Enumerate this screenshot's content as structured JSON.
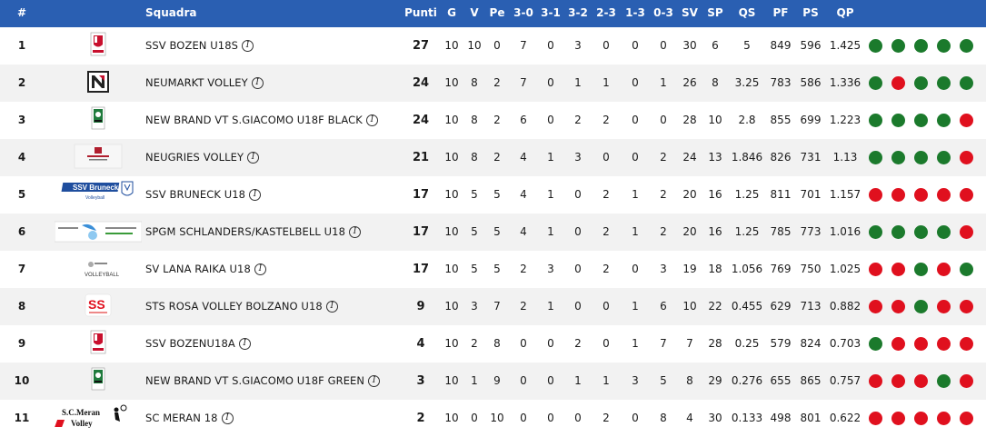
{
  "columns": [
    {
      "key": "rank",
      "label": "#"
    },
    {
      "key": "team",
      "label": "Squadra"
    },
    {
      "key": "pts",
      "label": "Punti"
    },
    {
      "key": "g",
      "label": "G"
    },
    {
      "key": "v",
      "label": "V"
    },
    {
      "key": "pe",
      "label": "Pe"
    },
    {
      "key": "r30",
      "label": "3-0"
    },
    {
      "key": "r31",
      "label": "3-1"
    },
    {
      "key": "r32",
      "label": "3-2"
    },
    {
      "key": "r23",
      "label": "2-3"
    },
    {
      "key": "r13",
      "label": "1-3"
    },
    {
      "key": "r03",
      "label": "0-3"
    },
    {
      "key": "sv",
      "label": "SV"
    },
    {
      "key": "sp",
      "label": "SP"
    },
    {
      "key": "qs",
      "label": "QS"
    },
    {
      "key": "pf",
      "label": "PF"
    },
    {
      "key": "ps",
      "label": "PS"
    },
    {
      "key": "qp",
      "label": "QP"
    }
  ],
  "colors": {
    "header_bg": "#2a5fb2",
    "win": "#1b7a2c",
    "loss": "#e0101e",
    "alt_row": "#f2f2f2"
  },
  "rows": [
    {
      "rank": "1",
      "team": "SSV BOZEN U18S",
      "logo": "bozen-logo",
      "pts": "27",
      "g": "10",
      "v": "10",
      "pe": "0",
      "r30": "7",
      "r31": "0",
      "r32": "3",
      "r23": "0",
      "r13": "0",
      "r03": "0",
      "sv": "30",
      "sp": "6",
      "qs": "5",
      "pf": "849",
      "ps": "596",
      "qp": "1.425",
      "form": [
        "W",
        "W",
        "W",
        "W",
        "W"
      ]
    },
    {
      "rank": "2",
      "team": "NEUMARKT VOLLEY",
      "logo": "neumarkt-logo",
      "pts": "24",
      "g": "10",
      "v": "8",
      "pe": "2",
      "r30": "7",
      "r31": "0",
      "r32": "1",
      "r23": "1",
      "r13": "0",
      "r03": "1",
      "sv": "26",
      "sp": "8",
      "qs": "3.25",
      "pf": "783",
      "ps": "586",
      "qp": "1.336",
      "form": [
        "W",
        "L",
        "W",
        "W",
        "W"
      ]
    },
    {
      "rank": "3",
      "team": "NEW BRAND VT S.GIACOMO U18F BLACK",
      "logo": "sgiacomo-logo",
      "pts": "24",
      "g": "10",
      "v": "8",
      "pe": "2",
      "r30": "6",
      "r31": "0",
      "r32": "2",
      "r23": "2",
      "r13": "0",
      "r03": "0",
      "sv": "28",
      "sp": "10",
      "qs": "2.8",
      "pf": "855",
      "ps": "699",
      "qp": "1.223",
      "form": [
        "W",
        "W",
        "W",
        "W",
        "L"
      ]
    },
    {
      "rank": "4",
      "team": "NEUGRIES VOLLEY",
      "logo": "neugries-logo",
      "pts": "21",
      "g": "10",
      "v": "8",
      "pe": "2",
      "r30": "4",
      "r31": "1",
      "r32": "3",
      "r23": "0",
      "r13": "0",
      "r03": "2",
      "sv": "24",
      "sp": "13",
      "qs": "1.846",
      "pf": "826",
      "ps": "731",
      "qp": "1.13",
      "form": [
        "W",
        "W",
        "W",
        "W",
        "L"
      ]
    },
    {
      "rank": "5",
      "team": "SSV BRUNECK U18",
      "logo": "bruneck-logo",
      "pts": "17",
      "g": "10",
      "v": "5",
      "pe": "5",
      "r30": "4",
      "r31": "1",
      "r32": "0",
      "r23": "2",
      "r13": "1",
      "r03": "2",
      "sv": "20",
      "sp": "16",
      "qs": "1.25",
      "pf": "811",
      "ps": "701",
      "qp": "1.157",
      "form": [
        "L",
        "L",
        "L",
        "L",
        "L"
      ]
    },
    {
      "rank": "6",
      "team": "SPGM SCHLANDERS/KASTELBELL U18",
      "logo": "schlanders-logo",
      "pts": "17",
      "g": "10",
      "v": "5",
      "pe": "5",
      "r30": "4",
      "r31": "1",
      "r32": "0",
      "r23": "2",
      "r13": "1",
      "r03": "2",
      "sv": "20",
      "sp": "16",
      "qs": "1.25",
      "pf": "785",
      "ps": "773",
      "qp": "1.016",
      "form": [
        "W",
        "W",
        "W",
        "W",
        "L"
      ]
    },
    {
      "rank": "7",
      "team": "SV LANA RAIKA U18",
      "logo": "lana-logo",
      "pts": "17",
      "g": "10",
      "v": "5",
      "pe": "5",
      "r30": "2",
      "r31": "3",
      "r32": "0",
      "r23": "2",
      "r13": "0",
      "r03": "3",
      "sv": "19",
      "sp": "18",
      "qs": "1.056",
      "pf": "769",
      "ps": "750",
      "qp": "1.025",
      "form": [
        "L",
        "L",
        "W",
        "L",
        "W"
      ]
    },
    {
      "rank": "8",
      "team": "STS ROSA VOLLEY BOLZANO U18",
      "logo": "rosa-logo",
      "pts": "9",
      "g": "10",
      "v": "3",
      "pe": "7",
      "r30": "2",
      "r31": "1",
      "r32": "0",
      "r23": "0",
      "r13": "1",
      "r03": "6",
      "sv": "10",
      "sp": "22",
      "qs": "0.455",
      "pf": "629",
      "ps": "713",
      "qp": "0.882",
      "form": [
        "L",
        "L",
        "W",
        "L",
        "L"
      ]
    },
    {
      "rank": "9",
      "team": "SSV BOZENU18A",
      "logo": "bozen-logo",
      "pts": "4",
      "g": "10",
      "v": "2",
      "pe": "8",
      "r30": "0",
      "r31": "0",
      "r32": "2",
      "r23": "0",
      "r13": "1",
      "r03": "7",
      "sv": "7",
      "sp": "28",
      "qs": "0.25",
      "pf": "579",
      "ps": "824",
      "qp": "0.703",
      "form": [
        "W",
        "L",
        "L",
        "L",
        "L"
      ]
    },
    {
      "rank": "10",
      "team": "NEW BRAND VT S.GIACOMO U18F GREEN",
      "logo": "sgiacomo-logo",
      "pts": "3",
      "g": "10",
      "v": "1",
      "pe": "9",
      "r30": "0",
      "r31": "0",
      "r32": "1",
      "r23": "1",
      "r13": "3",
      "r03": "5",
      "sv": "8",
      "sp": "29",
      "qs": "0.276",
      "pf": "655",
      "ps": "865",
      "qp": "0.757",
      "form": [
        "L",
        "L",
        "L",
        "W",
        "L"
      ]
    },
    {
      "rank": "11",
      "team": "SC MERAN 18",
      "logo": "meran-logo",
      "pts": "2",
      "g": "10",
      "v": "0",
      "pe": "10",
      "r30": "0",
      "r31": "0",
      "r32": "0",
      "r23": "2",
      "r13": "0",
      "r03": "8",
      "sv": "4",
      "sp": "30",
      "qs": "0.133",
      "pf": "498",
      "ps": "801",
      "qp": "0.622",
      "form": [
        "L",
        "L",
        "L",
        "L",
        "L"
      ]
    }
  ]
}
